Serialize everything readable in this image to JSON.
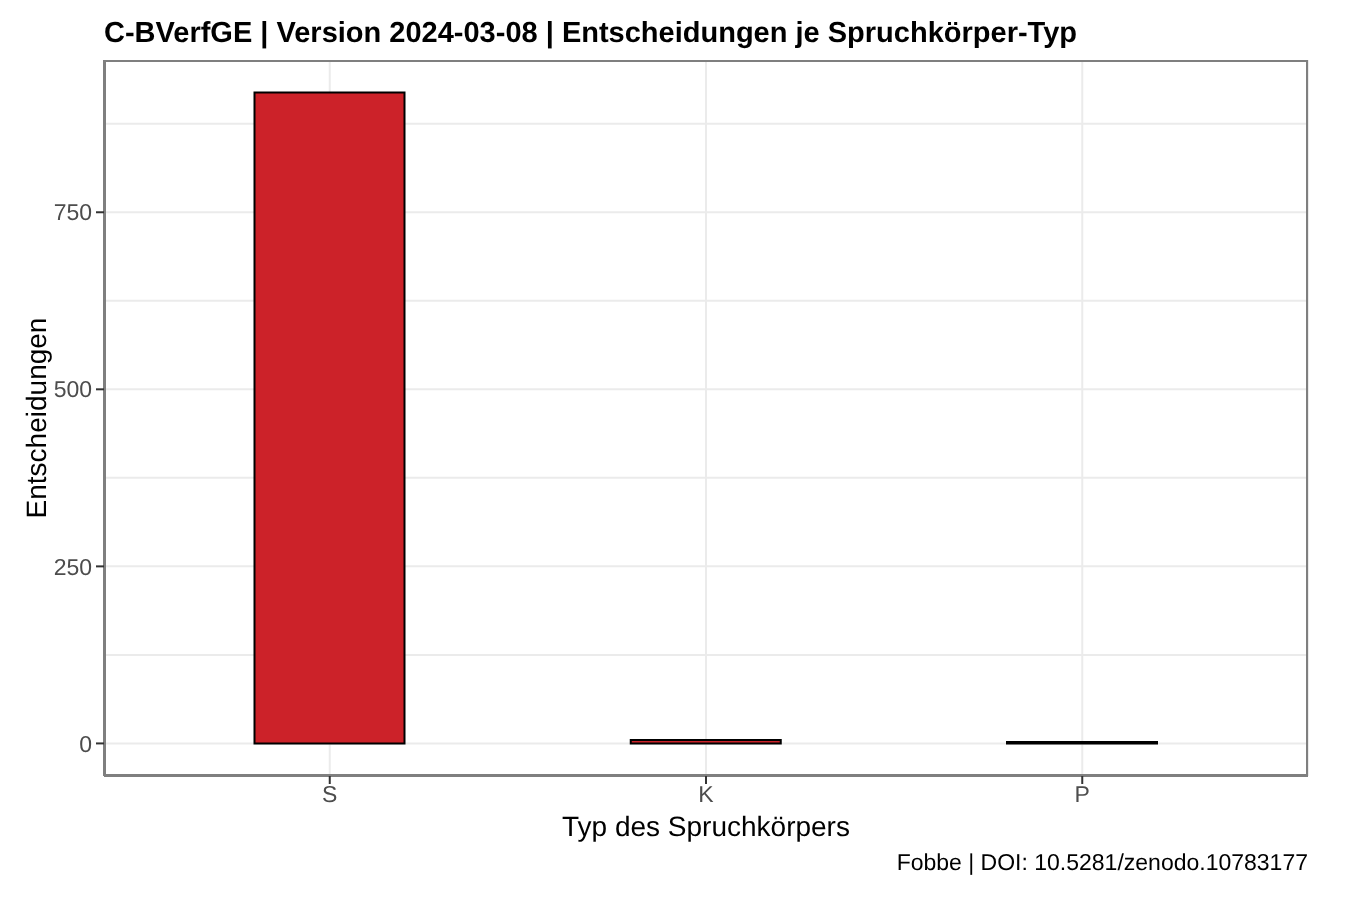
{
  "chart_data": {
    "type": "bar",
    "title": "C-BVerfGE | Version 2024-03-08 | Entscheidungen je Spruchkörper-Typ",
    "xlabel": "Typ des Spruchkörpers",
    "ylabel": "Entscheidungen",
    "annotations": [
      "Fobbe | DOI: 10.5281/zenodo.10783177"
    ],
    "categories": [
      "S",
      "K",
      "P"
    ],
    "values": [
      919,
      5,
      2
    ],
    "color": "#cc2229",
    "ylim": [
      -46,
      965
    ],
    "yticks": [
      0,
      250,
      500,
      750
    ],
    "grid": true
  }
}
